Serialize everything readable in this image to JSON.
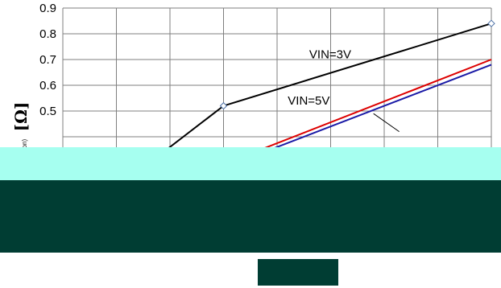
{
  "chart_data": {
    "type": "line",
    "title": "",
    "xlabel": "",
    "ylabel": "",
    "ylabel_symbol": "[Ω]",
    "ylabel_subscript": "(on)",
    "ylim": [
      0,
      0.9
    ],
    "y_ticks": [
      "0.9",
      "0.8",
      "0.7",
      "0.6",
      "0.5"
    ],
    "xlim": [
      -50,
      150
    ],
    "grid": true,
    "series": [
      {
        "name": "VIN=3V",
        "color": "#000000",
        "points": [
          [
            -50,
            0.04
          ],
          [
            25,
            0.52
          ],
          [
            150,
            0.84
          ]
        ],
        "marker": "diamond"
      },
      {
        "name": "VIN=5V",
        "color": "#dd0000",
        "points": [
          [
            -50,
            0.05
          ],
          [
            150,
            0.7
          ]
        ]
      },
      {
        "name": "",
        "color": "#1a1aa6",
        "points": [
          [
            -50,
            0.04
          ],
          [
            150,
            0.68
          ]
        ]
      }
    ],
    "annotations": [
      {
        "text": "VIN=3V",
        "x": 65,
        "y": 0.72
      },
      {
        "text": "VIN=5V",
        "x": 55,
        "y": 0.54
      }
    ]
  }
}
